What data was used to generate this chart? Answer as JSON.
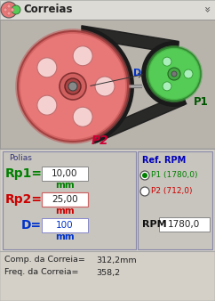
{
  "title": "Correias",
  "bg_color": "#d4d0c8",
  "header_bg": "#dddbd5",
  "illus_bg": "#b8b4ac",
  "panel_bg": "#d4d0c8",
  "section_label": "Polias",
  "rp1_label": "Rp1=",
  "rp1_value": "10,00",
  "rp1_unit": "mm",
  "rp2_label": "Rp2=",
  "rp2_value": "25,00",
  "rp2_unit": "mm",
  "d_label": "D=",
  "d_value": "100",
  "d_unit": "mm",
  "ref_rpm_label": "Ref. RPM",
  "radio1_label": "P1 (1780,0)",
  "radio2_label": "P2 (712,0)",
  "rpm_label": "RPM",
  "rpm_value": "1780,0",
  "comp_label": "Comp. da Correia=",
  "comp_value": "312,2mm",
  "freq_label": "Freq. da Correia=",
  "freq_value": "358,2",
  "p1_label": "P1",
  "p2_label": "P2",
  "d_arrow_label": "D",
  "color_green": "#008000",
  "color_red": "#cc0000",
  "color_blue": "#0033cc",
  "pulley_large_color": "#e87878",
  "pulley_large_dark": "#c85858",
  "pulley_large_light": "#f0a0a0",
  "pulley_small_color": "#55cc55",
  "pulley_small_dark": "#339933",
  "belt_color": "#111111",
  "belt_shadow": "#333333",
  "wheel_hole_color": "#f5d0d0",
  "spoke_color": "#d06868"
}
